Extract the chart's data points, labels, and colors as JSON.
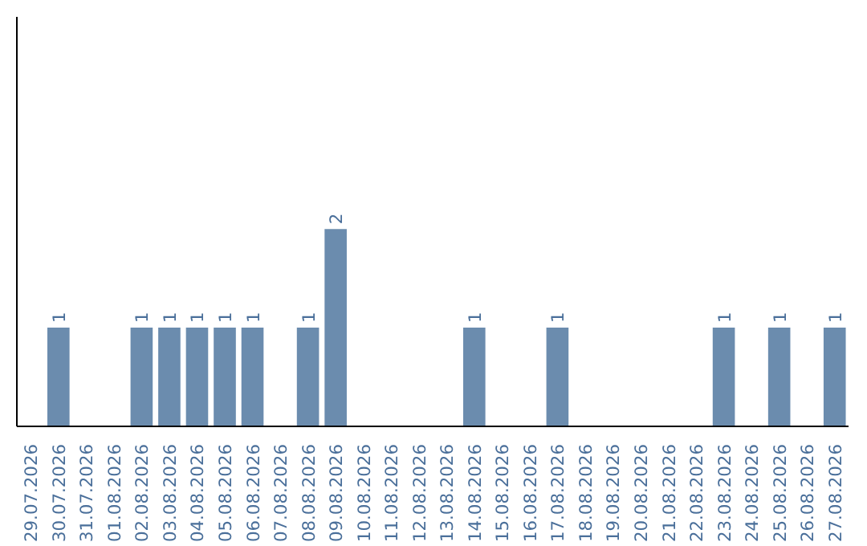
{
  "chart_data": {
    "type": "bar",
    "categories": [
      "29.07.2026",
      "30.07.2026",
      "31.07.2026",
      "01.08.2026",
      "02.08.2026",
      "03.08.2026",
      "04.08.2026",
      "05.08.2026",
      "06.08.2026",
      "07.08.2026",
      "08.08.2026",
      "09.08.2026",
      "10.08.2026",
      "11.08.2026",
      "12.08.2026",
      "13.08.2026",
      "14.08.2026",
      "15.08.2026",
      "16.08.2026",
      "17.08.2026",
      "18.08.2026",
      "19.08.2026",
      "20.08.2026",
      "21.08.2026",
      "22.08.2026",
      "23.08.2026",
      "24.08.2026",
      "25.08.2026",
      "26.08.2026",
      "27.08.2026"
    ],
    "values": [
      0,
      1,
      0,
      0,
      1,
      1,
      1,
      1,
      1,
      0,
      1,
      2,
      0,
      0,
      0,
      0,
      1,
      0,
      0,
      1,
      0,
      0,
      0,
      0,
      0,
      1,
      0,
      1,
      0,
      1
    ],
    "value_labels": [
      null,
      "1",
      null,
      null,
      "1",
      "1",
      "1",
      "1",
      "1",
      null,
      "1",
      "2",
      null,
      null,
      null,
      null,
      "1",
      null,
      null,
      "1",
      null,
      null,
      null,
      null,
      null,
      "1",
      null,
      "1",
      null,
      "1"
    ],
    "color": "#6b8cae",
    "ylim": [
      0,
      4.15
    ],
    "tick_labels": "x",
    "grid": false
  }
}
